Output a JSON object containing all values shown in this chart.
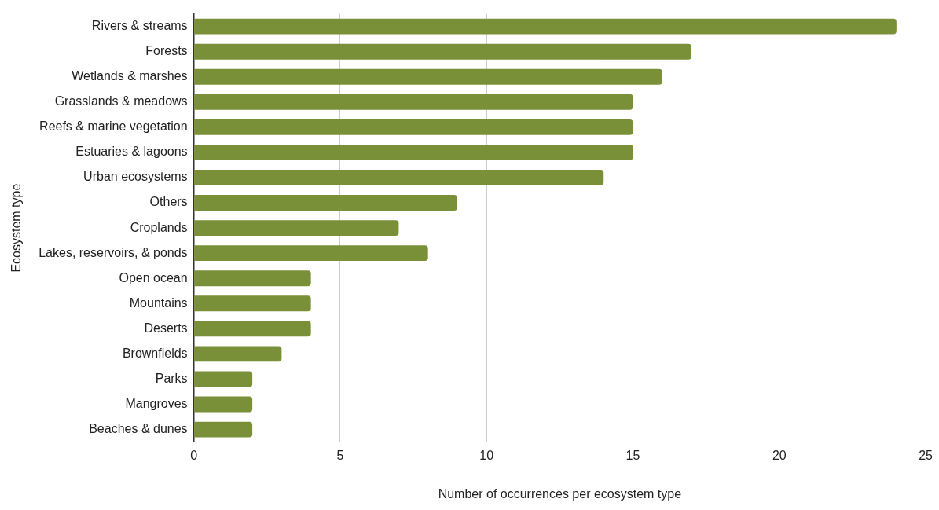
{
  "chart_data": {
    "type": "bar",
    "orientation": "horizontal",
    "xlabel": "Number of occurrences per ecosystem type",
    "ylabel": "Ecosystem type",
    "categories": [
      "Rivers & streams",
      "Forests",
      "Wetlands & marshes",
      "Grasslands & meadows",
      "Reefs & marine vegetation",
      "Estuaries & lagoons",
      "Urban ecosystems",
      "Others",
      "Croplands",
      "Lakes, reservoirs, & ponds",
      "Open ocean",
      "Mountains",
      "Deserts",
      "Brownfields",
      "Parks",
      "Mangroves",
      "Beaches & dunes"
    ],
    "values": [
      24,
      17,
      16,
      15,
      15,
      15,
      14,
      9,
      7,
      8,
      4,
      4,
      4,
      3,
      2,
      2,
      2
    ],
    "color": "#7a9038",
    "xlim": [
      0,
      25
    ],
    "xticks": [
      0,
      5,
      10,
      15,
      20,
      25
    ],
    "grid": "x",
    "legend": false
  }
}
